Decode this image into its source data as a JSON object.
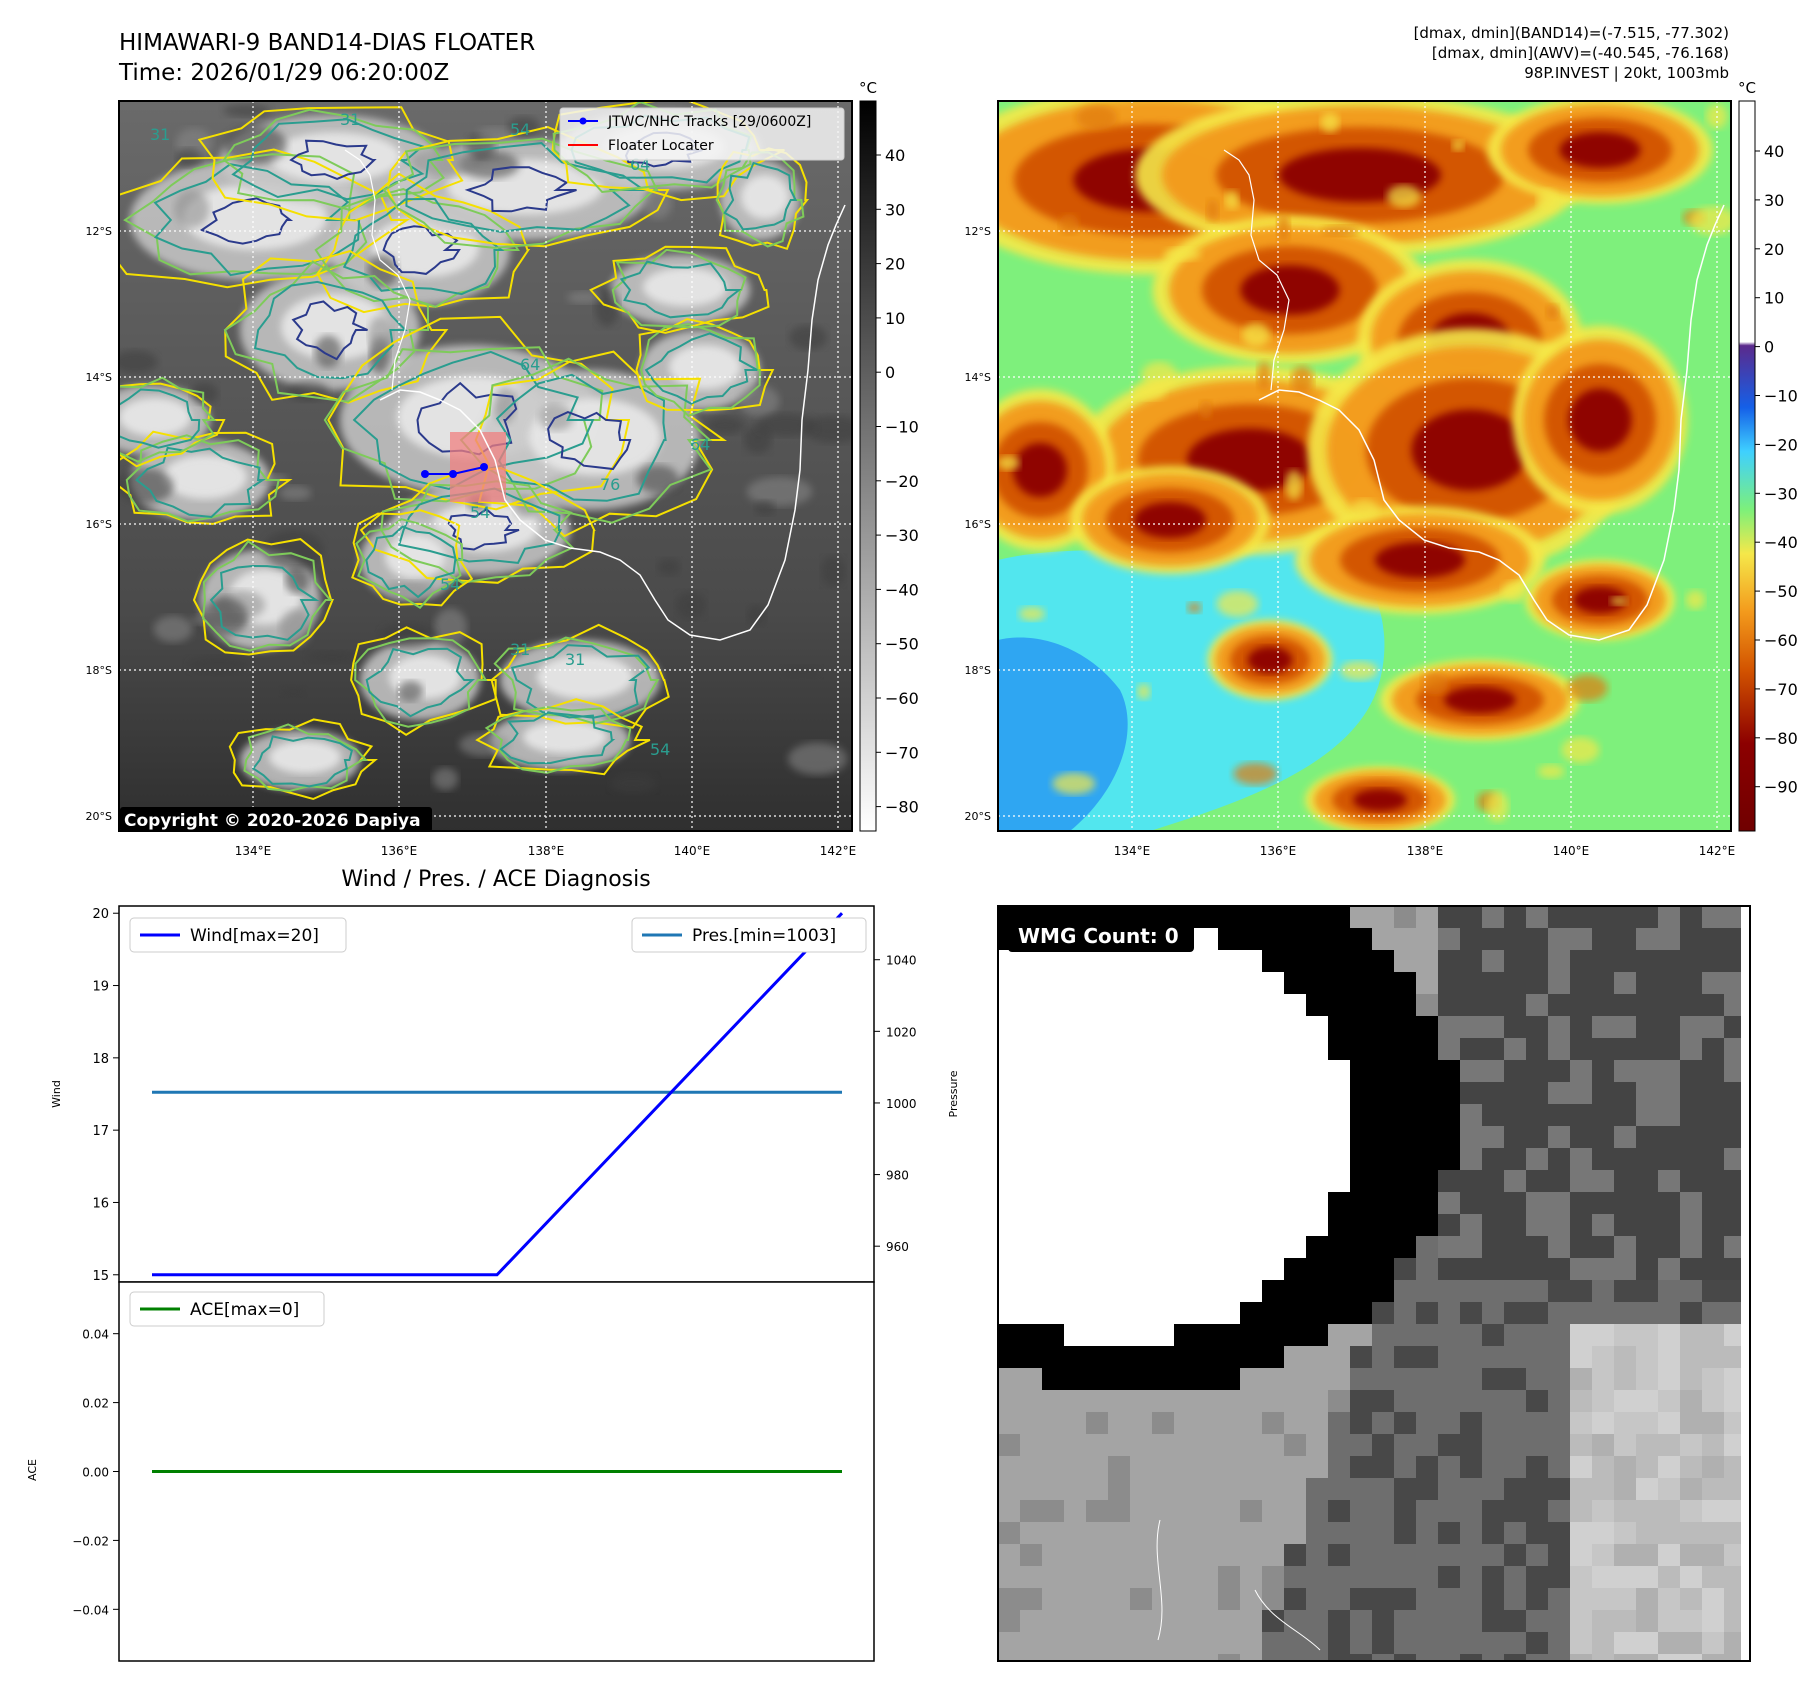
{
  "header": {
    "title_line1": "HIMAWARI-9 BAND14-DIAS FLOATER",
    "title_line2": "Time: 2026/01/29 06:20:00Z",
    "info_line1": "[dmax, dmin](BAND14)=(-7.515, -77.302)",
    "info_line2": "[dmax, dmin](AWV)=(-40.545, -76.168)",
    "info_line3": "98P.INVEST | 20kt, 1003mb"
  },
  "map": {
    "lat_labels": [
      "12°S",
      "14°S",
      "16°S",
      "18°S",
      "20°S"
    ],
    "lon_labels": [
      "134°E",
      "136°E",
      "138°E",
      "140°E",
      "142°E"
    ],
    "unit": "°C",
    "copyright": "Copyright © 2020-2026 Dapiya",
    "contour_labels": [
      "31",
      "54",
      "64",
      "76"
    ],
    "legend": [
      {
        "label": "JTWC/NHC Tracks [29/0600Z]",
        "color": "#0000ff"
      },
      {
        "label": "Floater Locater",
        "color": "#ff0000"
      }
    ],
    "track_color": "#0000ff",
    "locator_color": "#f08080",
    "colorbar_ir_ticks": [
      "40",
      "30",
      "20",
      "10",
      "0",
      "−10",
      "−20",
      "−30",
      "−40",
      "−50",
      "−60",
      "−70",
      "−80"
    ],
    "colorbar_enh_ticks": [
      "40",
      "30",
      "20",
      "10",
      "0",
      "−10",
      "−20",
      "−30",
      "−40",
      "−50",
      "−60",
      "−70",
      "−80",
      "−90"
    ]
  },
  "diagnosis": {
    "title": "Wind / Pres. / ACE Diagnosis",
    "wind_label": "Wind",
    "pressure_label": "Pressure",
    "ace_label": "ACE",
    "wind_legend": "Wind[max=20]",
    "pressure_legend": "Pres.[min=1003]",
    "ace_legend": "ACE[max=0]",
    "wind_ticks": [
      "20",
      "19",
      "18",
      "17",
      "16",
      "15"
    ],
    "pressure_ticks": [
      "1040",
      "1020",
      "1000",
      "980",
      "960"
    ],
    "ace_ticks": [
      "0.04",
      "0.02",
      "0.00",
      "−0.02",
      "−0.04"
    ],
    "wind_color": "#0000ff",
    "pressure_color": "#1f77b4",
    "ace_color": "#008000"
  },
  "wmg": {
    "label": "WMG Count: 0"
  },
  "chart_data": [
    {
      "type": "line",
      "name": "wind",
      "x": [
        0,
        1,
        2
      ],
      "values": [
        15,
        15,
        20
      ],
      "ylim": [
        14.9,
        20.1
      ]
    },
    {
      "type": "line",
      "name": "pressure",
      "x": [
        0,
        1,
        2
      ],
      "values": [
        1003,
        1003,
        1003
      ],
      "ylim": [
        950,
        1055
      ]
    },
    {
      "type": "line",
      "name": "ace",
      "x": [
        0,
        1,
        2
      ],
      "values": [
        0,
        0,
        0
      ],
      "ylim": [
        -0.055,
        0.055
      ]
    }
  ]
}
